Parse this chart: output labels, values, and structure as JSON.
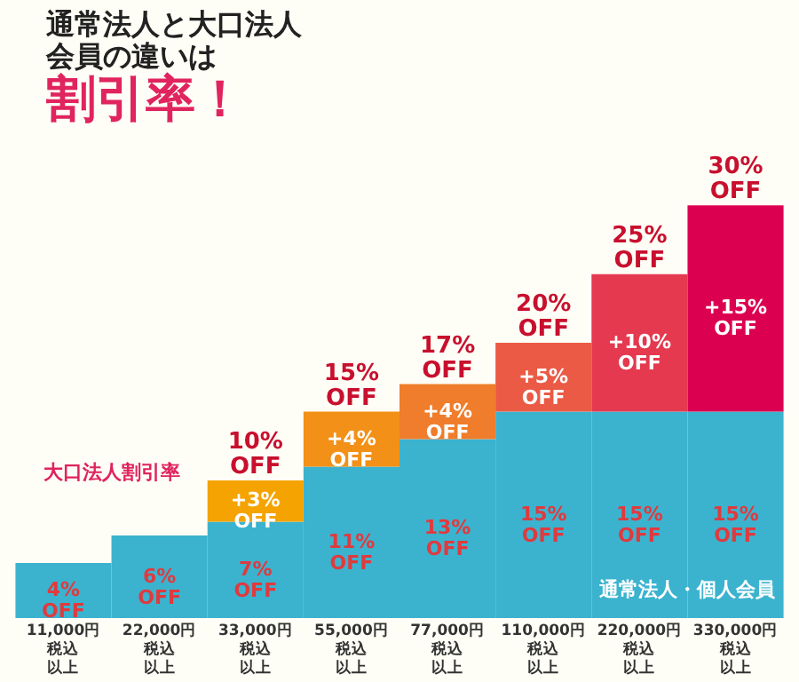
{
  "chart_data": {
    "type": "bar",
    "stacked": true,
    "title": "通常法人と大口法人会員の違いは",
    "subtitle": "割引率！",
    "categories": [
      "11,000円税込以上",
      "22,000円税込以上",
      "33,000円税込以上",
      "55,000円税込以上",
      "77,000円税込以上",
      "110,000円税込以上",
      "220,000円税込以上",
      "330,000円税込以上"
    ],
    "series": [
      {
        "name": "通常法人・個人会員",
        "color": "#3bb3cf",
        "values": [
          4,
          6,
          7,
          11,
          13,
          15,
          15,
          15
        ],
        "value_labels": [
          "4% OFF",
          "6% OFF",
          "7% OFF",
          "11% OFF",
          "13% OFF",
          "15% OFF",
          "15% OFF",
          "15% OFF"
        ]
      },
      {
        "name": "大口法人割引率",
        "colors": [
          null,
          null,
          "#f5a300",
          "#f29017",
          "#ef7d2b",
          "#ea5a45",
          "#e4394f",
          "#dc0050"
        ],
        "values": [
          null,
          null,
          3,
          4,
          4,
          5,
          10,
          15
        ],
        "value_labels": [
          null,
          null,
          "+3% OFF",
          "+4% OFF",
          "+4% OFF",
          "+5% OFF",
          "+10% OFF",
          "+15% OFF"
        ]
      }
    ],
    "totals": [
      null,
      null,
      "10% OFF",
      "15% OFF",
      "17% OFF",
      "20% OFF",
      "25% OFF",
      "30% OFF"
    ],
    "grid": false
  }
}
